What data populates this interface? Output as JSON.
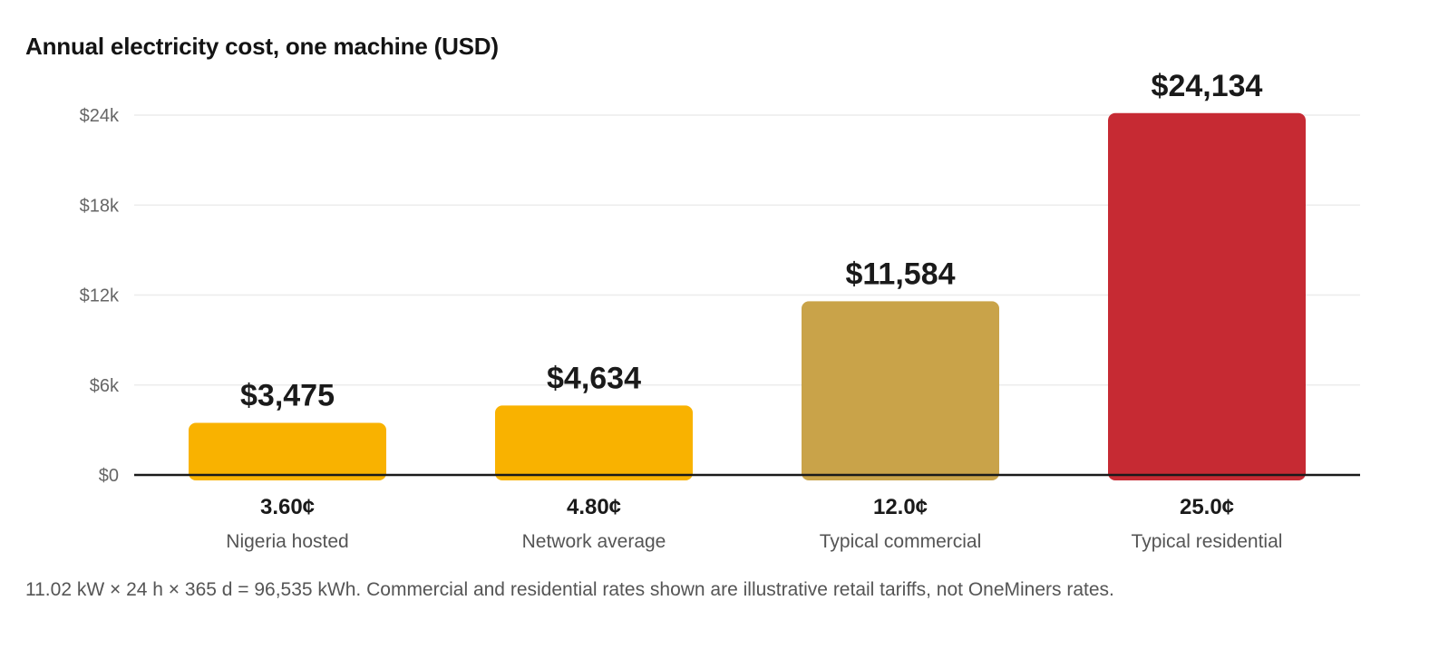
{
  "chart_data": {
    "type": "bar",
    "title": "Annual electricity cost, one machine (USD)",
    "xlabel": "",
    "ylabel": "",
    "ylim": [
      0,
      24000
    ],
    "yticks": [
      0,
      6000,
      12000,
      18000,
      24000
    ],
    "ytick_labels": [
      "$0",
      "$6k",
      "$12k",
      "$18k",
      "$24k"
    ],
    "grid": true,
    "categories": [
      "Nigeria hosted",
      "Network average",
      "Typical commercial",
      "Typical residential"
    ],
    "rates": [
      "3.60¢",
      "4.80¢",
      "12.0¢",
      "25.0¢"
    ],
    "values": [
      3475,
      4634,
      11584,
      24134
    ],
    "value_labels": [
      "$3,475",
      "$4,634",
      "$11,584",
      "$24,134"
    ],
    "colors": [
      "#f9b200",
      "#f9b200",
      "#c9a349",
      "#c62a33"
    ]
  },
  "footnote": "11.02 kW × 24 h × 365 d = 96,535 kWh. Commercial and residential rates shown are illustrative retail tariffs, not OneMiners rates."
}
